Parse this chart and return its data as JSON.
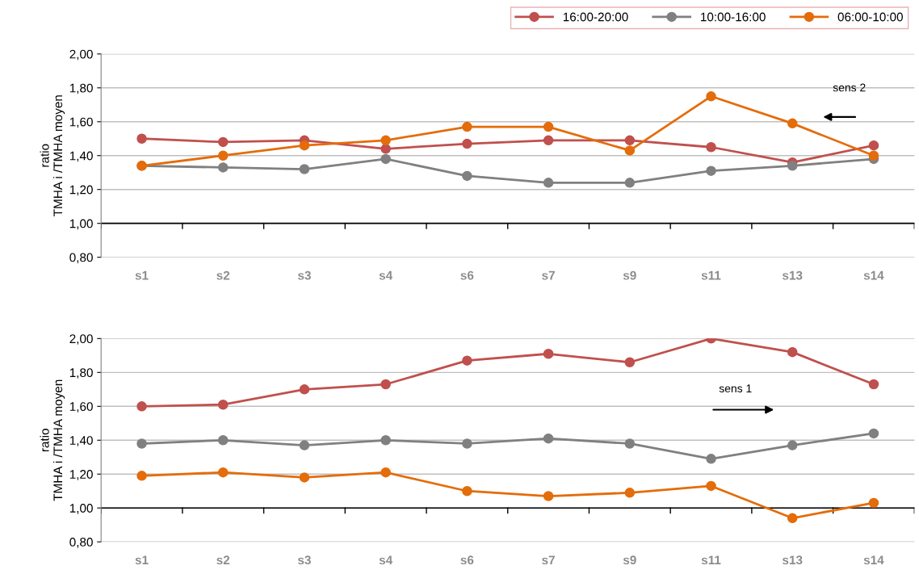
{
  "chart_data": [
    {
      "type": "line",
      "ylabel": "ratio\nTMHA i /TMHA moyen",
      "categories": [
        "s1",
        "s2",
        "s3",
        "s4",
        "s6",
        "s7",
        "s9",
        "s11",
        "s13",
        "s14"
      ],
      "ylim": [
        0.8,
        2.0
      ],
      "yticks": [
        {
          "value": 0.8,
          "label": "0,80"
        },
        {
          "value": 1.0,
          "label": "1,00"
        },
        {
          "value": 1.2,
          "label": "1,20"
        },
        {
          "value": 1.4,
          "label": "1,40"
        },
        {
          "value": 1.6,
          "label": "1,60"
        },
        {
          "value": 1.8,
          "label": "1,80"
        },
        {
          "value": 2.0,
          "label": "2,00"
        }
      ],
      "grid": "y",
      "marker": "circle",
      "line_style": "solid",
      "legend": "top right",
      "ref_lines": [
        {
          "axis": "y",
          "value": 1.0,
          "color": "#000000"
        }
      ],
      "annotations": [
        "sens 2"
      ],
      "series": [
        {
          "name": "16:00-20:00",
          "color": "#c0504d",
          "values": [
            1.5,
            1.48,
            1.49,
            1.44,
            1.47,
            1.49,
            1.49,
            1.45,
            1.36,
            1.46
          ]
        },
        {
          "name": "10:00-16:00",
          "color": "#808080",
          "values": [
            1.34,
            1.33,
            1.32,
            1.38,
            1.28,
            1.24,
            1.24,
            1.31,
            1.34,
            1.38
          ]
        },
        {
          "name": "06:00-10:00",
          "color": "#e46c0a",
          "values": [
            1.34,
            1.4,
            1.46,
            1.49,
            1.57,
            1.57,
            1.43,
            1.75,
            1.59,
            1.4
          ]
        }
      ]
    },
    {
      "type": "line",
      "ylabel": "ratio\nTMHA i /TMHA moyen",
      "categories": [
        "s1",
        "s2",
        "s3",
        "s4",
        "s6",
        "s7",
        "s9",
        "s11",
        "s13",
        "s14"
      ],
      "ylim": [
        0.8,
        2.0
      ],
      "yticks": [
        {
          "value": 0.8,
          "label": "0,80"
        },
        {
          "value": 1.0,
          "label": "1,00"
        },
        {
          "value": 1.2,
          "label": "1,20"
        },
        {
          "value": 1.4,
          "label": "1,40"
        },
        {
          "value": 1.6,
          "label": "1,60"
        },
        {
          "value": 1.8,
          "label": "1,80"
        },
        {
          "value": 2.0,
          "label": "2,00"
        }
      ],
      "grid": "y",
      "marker": "circle",
      "line_style": "solid",
      "ref_lines": [
        {
          "axis": "y",
          "value": 1.0,
          "color": "#000000"
        }
      ],
      "annotations": [
        "sens 1"
      ],
      "series": [
        {
          "color": "#c0504d",
          "values": [
            1.6,
            1.61,
            1.7,
            1.73,
            1.87,
            1.91,
            1.86,
            2.0,
            1.92,
            1.73
          ]
        },
        {
          "color": "#808080",
          "values": [
            1.38,
            1.4,
            1.37,
            1.4,
            1.38,
            1.41,
            1.38,
            1.29,
            1.37,
            1.44
          ]
        },
        {
          "color": "#e46c0a",
          "values": [
            1.19,
            1.21,
            1.18,
            1.21,
            1.1,
            1.07,
            1.09,
            1.13,
            0.94,
            1.03
          ]
        }
      ]
    }
  ]
}
